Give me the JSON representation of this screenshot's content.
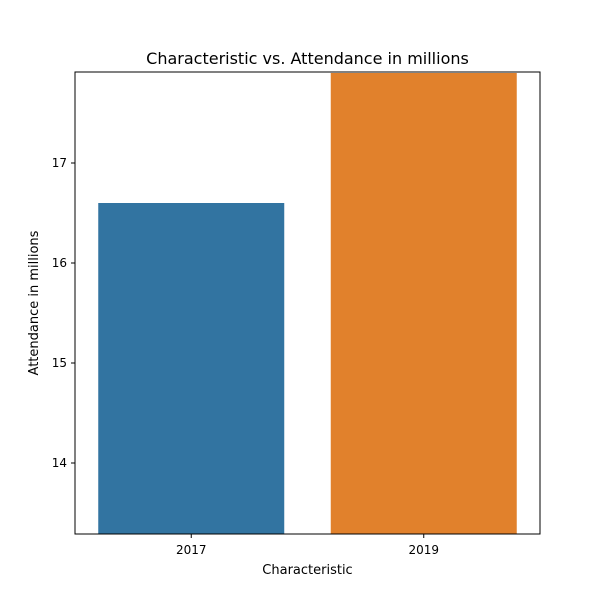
{
  "chart_data": {
    "type": "bar",
    "title": "Characteristic vs. Attendance in millions",
    "xlabel": "Characteristic",
    "ylabel": "Attendance in millions",
    "categories": [
      "2017",
      "2019"
    ],
    "values": [
      16.6,
      17.9
    ],
    "ylim": [
      13.29,
      17.91
    ],
    "yticks": [
      14,
      15,
      16,
      17
    ],
    "grid": false,
    "legend": "none",
    "colors": [
      "#3274a1",
      "#e1812c"
    ]
  }
}
